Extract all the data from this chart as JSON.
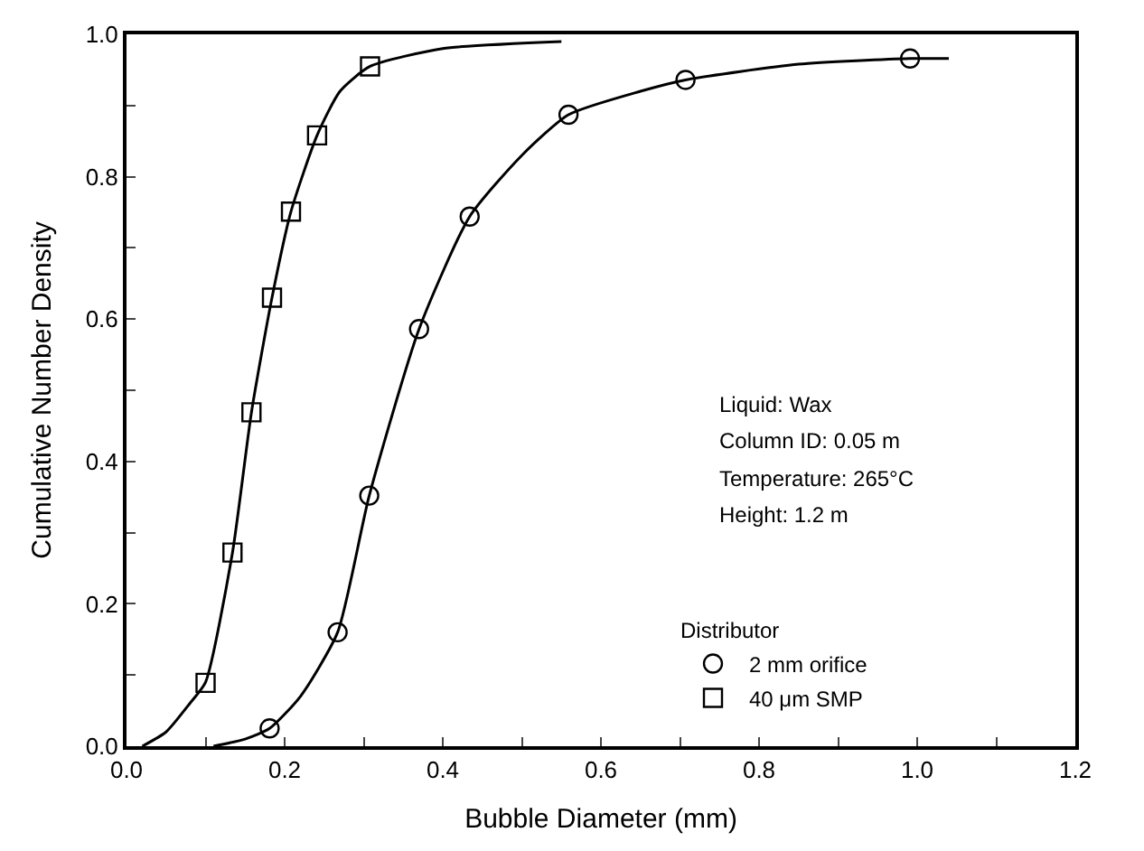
{
  "chart_data": {
    "type": "scatter",
    "xlabel": "Bubble Diameter (mm)",
    "ylabel": "Cumulative Number Density",
    "legend_title": "Distributor",
    "legend": "bottom right",
    "grid": false,
    "xlim": [
      0,
      1.2
    ],
    "ylim": [
      0,
      1.0
    ],
    "xticks": [
      {
        "value": 0,
        "label": "0.0"
      },
      {
        "value": 0.1,
        "label": null
      },
      {
        "value": 0.2,
        "label": "0.2"
      },
      {
        "value": 0.3,
        "label": null
      },
      {
        "value": 0.4,
        "label": "0.4"
      },
      {
        "value": 0.5,
        "label": null
      },
      {
        "value": 0.6,
        "label": "0.6"
      },
      {
        "value": 0.7,
        "label": null
      },
      {
        "value": 0.8,
        "label": "0.8"
      },
      {
        "value": 0.9,
        "label": null
      },
      {
        "value": 1.0,
        "label": "1.0"
      },
      {
        "value": 1.1,
        "label": null
      },
      {
        "value": 1.2,
        "label": "1.2"
      }
    ],
    "yticks": [
      {
        "value": 0,
        "label": "0.0"
      },
      {
        "value": 0.1,
        "label": null
      },
      {
        "value": 0.2,
        "label": "0.2"
      },
      {
        "value": 0.3,
        "label": null
      },
      {
        "value": 0.4,
        "label": "0.4"
      },
      {
        "value": 0.5,
        "label": null
      },
      {
        "value": 0.6,
        "label": "0.6"
      },
      {
        "value": 0.7,
        "label": null
      },
      {
        "value": 0.8,
        "label": "0.8"
      },
      {
        "value": 0.9,
        "label": null
      },
      {
        "value": 1.0,
        "label": "1.0"
      }
    ],
    "annotations": [
      "Liquid: Wax",
      "Column ID: 0.05 m",
      "Temperature: 265°C",
      "Height: 1.2 m"
    ],
    "series": [
      {
        "type": "line",
        "marker": "none",
        "color": "#000000",
        "x": [
          0.11,
          0.15,
          0.181,
          0.22,
          0.267,
          0.307,
          0.37,
          0.434,
          0.5,
          0.559,
          0.65,
          0.707,
          0.85,
          0.991,
          1.04
        ],
        "values": [
          0,
          0.01,
          0.025,
          0.07,
          0.16,
          0.352,
          0.586,
          0.744,
          0.83,
          0.887,
          0.92,
          0.936,
          0.958,
          0.966,
          0.966
        ]
      },
      {
        "type": "line",
        "marker": "none",
        "color": "#000000",
        "x": [
          0.02,
          0.05,
          0.08,
          0.1,
          0.134,
          0.158,
          0.184,
          0.208,
          0.241,
          0.27,
          0.308,
          0.4,
          0.55
        ],
        "values": [
          0,
          0.02,
          0.06,
          0.09,
          0.272,
          0.469,
          0.63,
          0.751,
          0.858,
          0.92,
          0.955,
          0.98,
          0.99
        ]
      },
      {
        "name": "2 mm orifice",
        "marker": "circle",
        "color": "#000000",
        "x": [
          0.181,
          0.267,
          0.307,
          0.37,
          0.434,
          0.559,
          0.707,
          0.991
        ],
        "values": [
          0.025,
          0.16,
          0.352,
          0.586,
          0.744,
          0.887,
          0.936,
          0.966
        ]
      },
      {
        "name": "40 μm SMP",
        "marker": "square",
        "color": "#000000",
        "x": [
          0.1,
          0.134,
          0.158,
          0.184,
          0.208,
          0.241,
          0.308
        ],
        "values": [
          0.089,
          0.272,
          0.469,
          0.63,
          0.751,
          0.858,
          0.955
        ]
      }
    ]
  }
}
